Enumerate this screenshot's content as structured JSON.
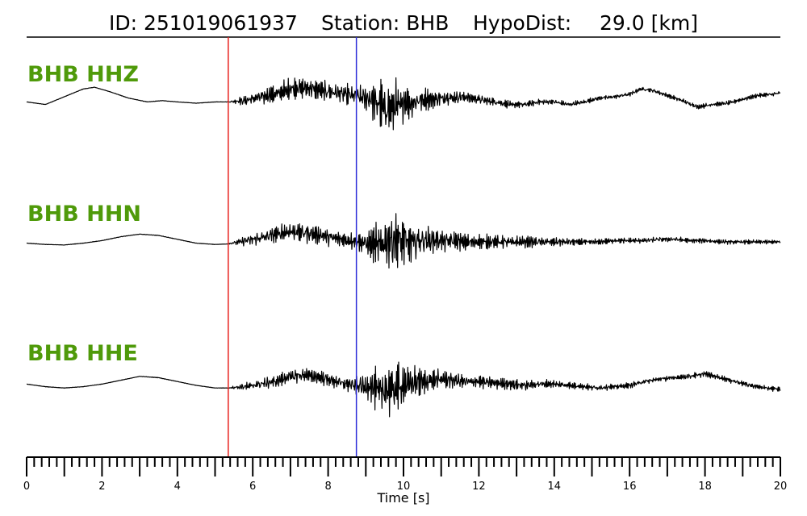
{
  "header": {
    "id_text": "ID: 251019061937",
    "station_text": "Station: BHB",
    "hypodist_label": "HypoDist:",
    "hypodist_value": "29.0 [km]"
  },
  "colors": {
    "label": "#4f9a0a",
    "trace": "#000000",
    "p_pick": "#e8211e",
    "s_pick": "#2b2bd9",
    "axis": "#000000"
  },
  "chart_data": {
    "type": "line",
    "title": "ID: 251019061937   Station: BHB   HypoDist:     29.0 [km]",
    "xlabel": "Time [s]",
    "ylabel": "",
    "xlim": [
      0,
      20
    ],
    "x_ticks": [
      0,
      2,
      4,
      6,
      8,
      10,
      12,
      14,
      16,
      18,
      20
    ],
    "x_tick_labels": [
      "0",
      "2",
      "4",
      "6",
      "8",
      "10",
      "12",
      "14",
      "16",
      "18",
      "20"
    ],
    "minor_tick_step": 0.2,
    "grid": false,
    "picks": [
      {
        "phase": "P",
        "time": 5.35,
        "color": "#e8211e"
      },
      {
        "phase": "S",
        "time": 8.75,
        "color": "#2b2bd9"
      }
    ],
    "series": [
      {
        "name": "BHB HHZ",
        "x": [
          0,
          0.5,
          1,
          1.5,
          1.8,
          2.2,
          2.7,
          3.2,
          3.6,
          4,
          4.5,
          5,
          5.35,
          5.8,
          6.2,
          6.6,
          7,
          7.4,
          7.8,
          8.2,
          8.5,
          8.75,
          9,
          9.2,
          9.4,
          9.6,
          9.8,
          10,
          10.2,
          10.4,
          10.6,
          10.8,
          11,
          11.3,
          11.6,
          12,
          12.4,
          12.8,
          13.2,
          13.6,
          14,
          14.4,
          14.8,
          15.2,
          15.6,
          16,
          16.3,
          16.6,
          17,
          17.4,
          17.8,
          18.2,
          18.6,
          19,
          19.4,
          19.8,
          20
        ],
        "values": [
          0.05,
          -0.05,
          0.25,
          0.55,
          0.62,
          0.45,
          0.2,
          0.05,
          0.1,
          0.05,
          0.0,
          0.05,
          0.05,
          0.1,
          0.25,
          0.35,
          0.55,
          0.6,
          0.5,
          0.4,
          0.35,
          0.3,
          0.2,
          0.1,
          -0.05,
          -0.3,
          -0.1,
          0.05,
          -0.05,
          0.1,
          0.15,
          0.15,
          0.2,
          0.2,
          0.25,
          0.15,
          0.05,
          -0.05,
          -0.05,
          0.05,
          0.05,
          -0.05,
          0.05,
          0.2,
          0.25,
          0.35,
          0.55,
          0.5,
          0.3,
          0.1,
          -0.15,
          -0.05,
          0.0,
          0.15,
          0.3,
          0.35,
          0.4
        ],
        "amplitude": [
          0.01,
          0.01,
          0.01,
          0.01,
          0.01,
          0.01,
          0.01,
          0.01,
          0.01,
          0.01,
          0.01,
          0.01,
          0.01,
          0.25,
          0.35,
          0.45,
          0.5,
          0.5,
          0.5,
          0.45,
          0.45,
          0.45,
          0.65,
          0.9,
          1.2,
          1.3,
          1.15,
          0.95,
          0.75,
          0.6,
          0.5,
          0.45,
          0.4,
          0.35,
          0.3,
          0.25,
          0.2,
          0.18,
          0.15,
          0.14,
          0.13,
          0.12,
          0.11,
          0.11,
          0.1,
          0.1,
          0.1,
          0.1,
          0.1,
          0.1,
          0.1,
          0.1,
          0.1,
          0.1,
          0.1,
          0.1,
          0.1
        ]
      },
      {
        "name": "BHB HHN",
        "x": [
          0,
          0.5,
          1,
          1.5,
          2,
          2.5,
          3,
          3.5,
          4,
          4.5,
          5,
          5.35,
          5.8,
          6.2,
          6.6,
          7,
          7.4,
          7.8,
          8.2,
          8.5,
          8.75,
          9,
          9.2,
          9.4,
          9.6,
          9.8,
          10,
          10.2,
          10.4,
          10.6,
          10.8,
          11,
          11.3,
          11.6,
          12,
          12.4,
          12.8,
          13.2,
          13.6,
          14,
          14.4,
          14.8,
          15.2,
          15.6,
          16,
          16.4,
          16.8,
          17.2,
          17.6,
          18,
          18.4,
          18.8,
          19.2,
          19.6,
          20
        ],
        "values": [
          -0.05,
          -0.1,
          -0.12,
          -0.05,
          0.05,
          0.2,
          0.3,
          0.25,
          0.1,
          -0.05,
          -0.1,
          -0.08,
          0.05,
          0.15,
          0.3,
          0.4,
          0.35,
          0.25,
          0.15,
          0.05,
          0.0,
          -0.05,
          -0.1,
          -0.05,
          0.0,
          0.05,
          0.05,
          0.0,
          0.05,
          0.05,
          0.05,
          0.05,
          0.05,
          0.0,
          0.0,
          0.0,
          0.0,
          0.0,
          0.0,
          0.0,
          0.0,
          0.0,
          0.0,
          0.05,
          0.05,
          0.05,
          0.1,
          0.1,
          0.05,
          0.05,
          0.0,
          0.0,
          0.0,
          0.0,
          0.0
        ],
        "amplitude": [
          0.01,
          0.01,
          0.01,
          0.01,
          0.01,
          0.01,
          0.01,
          0.01,
          0.01,
          0.01,
          0.01,
          0.01,
          0.25,
          0.35,
          0.4,
          0.45,
          0.45,
          0.4,
          0.4,
          0.4,
          0.4,
          0.55,
          0.8,
          1.05,
          1.4,
          1.5,
          1.35,
          1.1,
          0.85,
          0.65,
          0.55,
          0.5,
          0.45,
          0.4,
          0.35,
          0.3,
          0.28,
          0.25,
          0.22,
          0.2,
          0.18,
          0.15,
          0.14,
          0.13,
          0.13,
          0.12,
          0.12,
          0.12,
          0.11,
          0.11,
          0.1,
          0.1,
          0.1,
          0.1,
          0.1
        ]
      },
      {
        "name": "BHB HHE",
        "x": [
          0,
          0.5,
          1,
          1.5,
          2,
          2.5,
          3,
          3.5,
          4,
          4.5,
          5,
          5.35,
          5.8,
          6.2,
          6.6,
          7,
          7.4,
          7.8,
          8.2,
          8.5,
          8.75,
          9,
          9.2,
          9.4,
          9.6,
          9.8,
          10,
          10.2,
          10.4,
          10.6,
          10.8,
          11,
          11.3,
          11.6,
          12,
          12.4,
          12.8,
          13.2,
          13.6,
          14,
          14.4,
          14.8,
          15.2,
          15.6,
          16,
          16.4,
          16.8,
          17.2,
          17.6,
          18,
          18.4,
          18.8,
          19.2,
          19.6,
          20
        ],
        "values": [
          0.05,
          -0.05,
          -0.1,
          -0.05,
          0.05,
          0.2,
          0.35,
          0.3,
          0.15,
          0.0,
          -0.1,
          -0.1,
          -0.05,
          0.05,
          0.15,
          0.35,
          0.4,
          0.3,
          0.15,
          0.05,
          0.0,
          -0.05,
          -0.1,
          -0.15,
          -0.2,
          -0.1,
          0.0,
          0.1,
          0.15,
          0.15,
          0.2,
          0.25,
          0.2,
          0.15,
          0.15,
          0.1,
          0.05,
          0.0,
          0.05,
          0.05,
          0.0,
          -0.05,
          -0.1,
          -0.05,
          0.0,
          0.15,
          0.25,
          0.3,
          0.35,
          0.45,
          0.3,
          0.15,
          0.0,
          -0.1,
          -0.15
        ],
        "amplitude": [
          0.01,
          0.01,
          0.01,
          0.01,
          0.01,
          0.01,
          0.01,
          0.01,
          0.01,
          0.01,
          0.01,
          0.01,
          0.2,
          0.25,
          0.3,
          0.35,
          0.35,
          0.35,
          0.35,
          0.35,
          0.4,
          0.6,
          0.85,
          1.1,
          1.35,
          1.3,
          1.1,
          0.9,
          0.7,
          0.55,
          0.5,
          0.45,
          0.4,
          0.35,
          0.3,
          0.28,
          0.25,
          0.22,
          0.2,
          0.18,
          0.16,
          0.15,
          0.14,
          0.13,
          0.13,
          0.13,
          0.13,
          0.13,
          0.13,
          0.13,
          0.12,
          0.12,
          0.12,
          0.12,
          0.12
        ]
      }
    ]
  }
}
